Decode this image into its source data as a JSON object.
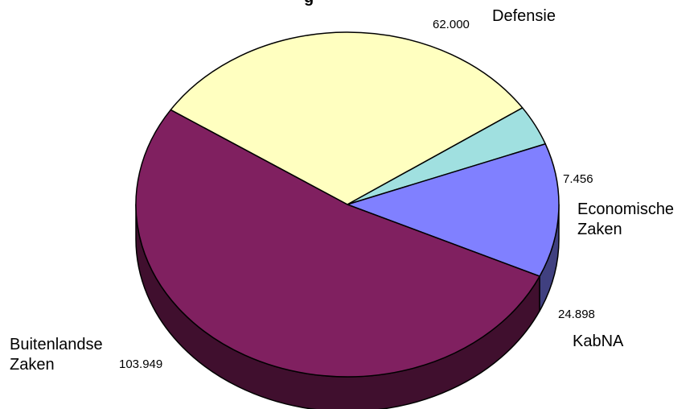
{
  "chart_data": {
    "type": "pie",
    "title": "",
    "slices": [
      {
        "name": "Defensie",
        "value": 62000,
        "value_label": "62.000",
        "color": "#ffffc0"
      },
      {
        "name": "Economische\nZaken",
        "value": 7456,
        "value_label": "7.456",
        "color": "#a0e0e0"
      },
      {
        "name": "KabNA",
        "value": 24898,
        "value_label": "24.898",
        "color": "#8080ff",
        "side_color": "#404080"
      },
      {
        "name": "Buitenlandse\nZaken",
        "value": 103949,
        "value_label": "103.949",
        "color": "#802060",
        "side_color": "#400f2e"
      }
    ]
  }
}
